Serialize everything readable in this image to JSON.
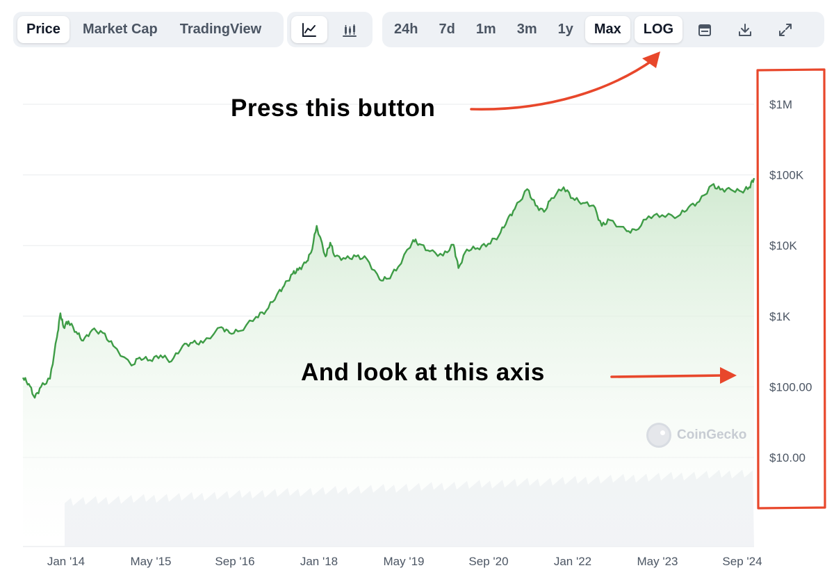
{
  "tabs": [
    {
      "label": "Price",
      "active": true
    },
    {
      "label": "Market Cap",
      "active": false
    },
    {
      "label": "TradingView",
      "active": false
    }
  ],
  "chart_type_buttons": [
    {
      "icon": "line-chart-icon",
      "active": true
    },
    {
      "icon": "candlestick-chart-icon",
      "active": false
    }
  ],
  "ranges": [
    {
      "label": "24h",
      "active": false
    },
    {
      "label": "7d",
      "active": false
    },
    {
      "label": "1m",
      "active": false
    },
    {
      "label": "3m",
      "active": false
    },
    {
      "label": "1y",
      "active": false
    },
    {
      "label": "Max",
      "active": true
    },
    {
      "label": "LOG",
      "active": true
    }
  ],
  "tool_icons": [
    "calendar-icon",
    "download-icon",
    "fullscreen-icon"
  ],
  "annotations": {
    "press_button": "Press this button",
    "look_axis": "And look at this axis"
  },
  "watermark": "CoinGecko",
  "colors": {
    "line": "#3e9c46",
    "area_top": "#cfe9cf",
    "volume": "#eef0f4",
    "annotation_red": "#e8472b",
    "grid": "#e9ebee",
    "axis_text": "#4b5563"
  },
  "chart_data": {
    "type": "line",
    "scale": "log",
    "grid": true,
    "ylim": [
      3,
      1500000
    ],
    "y_ticks": [
      {
        "value": 1000000,
        "label": "$1M"
      },
      {
        "value": 100000,
        "label": "$100K"
      },
      {
        "value": 10000,
        "label": "$10K"
      },
      {
        "value": 1000,
        "label": "$1K"
      },
      {
        "value": 100,
        "label": "$100.00"
      },
      {
        "value": 10,
        "label": "$10.00"
      }
    ],
    "x_ticks": [
      "Jan '14",
      "May '15",
      "Sep '16",
      "Jan '18",
      "May '19",
      "Sep '20",
      "Jan '22",
      "May '23",
      "Sep '24"
    ],
    "x_range": [
      "2013-04-28",
      "2024-11-12"
    ],
    "series": [
      {
        "x": [
          "2013-04-28",
          "2013-06-01",
          "2013-07-05",
          "2013-08-10",
          "2013-10-01",
          "2013-11-10",
          "2013-11-30",
          "2013-12-18",
          "2014-01-15",
          "2014-03-01",
          "2014-04-10",
          "2014-06-01",
          "2014-08-01",
          "2014-10-01",
          "2015-01-14",
          "2015-03-01",
          "2015-05-01",
          "2015-07-01",
          "2015-09-01",
          "2015-11-05",
          "2016-01-01",
          "2016-03-01",
          "2016-06-15",
          "2016-08-01",
          "2016-10-01",
          "2017-01-01",
          "2017-03-01",
          "2017-05-01",
          "2017-06-12",
          "2017-08-01",
          "2017-09-01",
          "2017-10-15",
          "2017-11-15",
          "2017-12-17",
          "2018-02-06",
          "2018-03-05",
          "2018-04-01",
          "2018-06-01",
          "2018-08-01",
          "2018-10-01",
          "2018-12-15",
          "2019-02-01",
          "2019-04-01",
          "2019-06-26",
          "2019-08-01",
          "2019-10-01",
          "2019-12-15",
          "2020-02-14",
          "2020-03-13",
          "2020-05-01",
          "2020-07-01",
          "2020-09-01",
          "2020-11-01",
          "2020-12-20",
          "2021-02-01",
          "2021-04-14",
          "2021-06-01",
          "2021-07-20",
          "2021-09-01",
          "2021-11-10",
          "2022-01-01",
          "2022-03-01",
          "2022-05-01",
          "2022-06-18",
          "2022-08-01",
          "2022-11-09",
          "2023-01-01",
          "2023-03-15",
          "2023-06-01",
          "2023-09-01",
          "2023-11-01",
          "2024-01-01",
          "2024-03-14",
          "2024-05-01",
          "2024-07-01",
          "2024-09-01",
          "2024-10-15",
          "2024-11-12"
        ],
        "y": [
          135,
          110,
          70,
          100,
          130,
          500,
          1100,
          700,
          850,
          600,
          450,
          640,
          580,
          380,
          200,
          260,
          240,
          280,
          230,
          380,
          420,
          420,
          700,
          580,
          620,
          980,
          1200,
          2000,
          2700,
          4000,
          4500,
          5700,
          8000,
          19000,
          7000,
          11000,
          7000,
          6500,
          7000,
          6500,
          3300,
          3400,
          5000,
          12000,
          10500,
          8300,
          7200,
          10300,
          4800,
          8800,
          9200,
          10600,
          13800,
          23000,
          33000,
          63000,
          37000,
          30000,
          47000,
          67000,
          47000,
          40000,
          37000,
          19000,
          23000,
          16000,
          16500,
          26000,
          27000,
          26000,
          35000,
          42000,
          72000,
          62000,
          62000,
          58000,
          67000,
          90000
        ]
      }
    ]
  }
}
